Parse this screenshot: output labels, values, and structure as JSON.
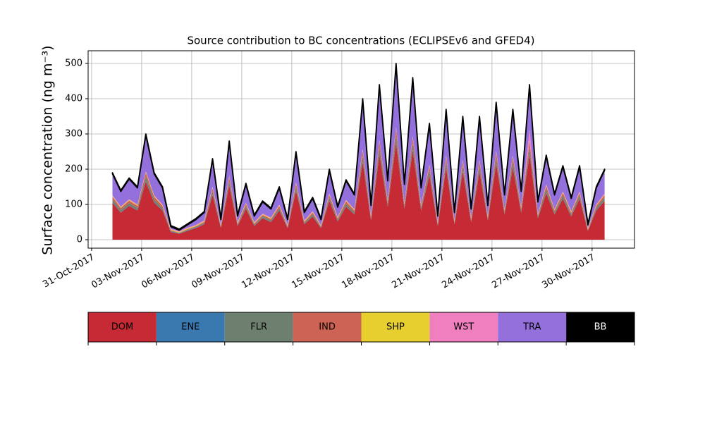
{
  "chart_data": {
    "type": "stacked-area",
    "title": "Source contribution to BC concentrations (ECLIPSEv6 and GFED4)",
    "y_label": "Surface concentration (ng m⁻³)",
    "x": [
      "2017-11-01T06:00",
      "2017-11-01T18:00",
      "2017-11-02T06:00",
      "2017-11-02T18:00",
      "2017-11-03T06:00",
      "2017-11-03T18:00",
      "2017-11-04T06:00",
      "2017-11-04T18:00",
      "2017-11-05T06:00",
      "2017-11-05T18:00",
      "2017-11-06T06:00",
      "2017-11-06T18:00",
      "2017-11-07T06:00",
      "2017-11-07T18:00",
      "2017-11-08T06:00",
      "2017-11-08T18:00",
      "2017-11-09T06:00",
      "2017-11-09T18:00",
      "2017-11-10T06:00",
      "2017-11-10T18:00",
      "2017-11-11T06:00",
      "2017-11-11T18:00",
      "2017-11-12T06:00",
      "2017-11-12T18:00",
      "2017-11-13T06:00",
      "2017-11-13T18:00",
      "2017-11-14T06:00",
      "2017-11-14T18:00",
      "2017-11-15T06:00",
      "2017-11-15T18:00",
      "2017-11-16T06:00",
      "2017-11-16T18:00",
      "2017-11-17T06:00",
      "2017-11-17T18:00",
      "2017-11-18T06:00",
      "2017-11-18T18:00",
      "2017-11-19T06:00",
      "2017-11-19T18:00",
      "2017-11-20T06:00",
      "2017-11-20T18:00",
      "2017-11-21T06:00",
      "2017-11-21T18:00",
      "2017-11-22T06:00",
      "2017-11-22T18:00",
      "2017-11-23T06:00",
      "2017-11-23T18:00",
      "2017-11-24T06:00",
      "2017-11-24T18:00",
      "2017-11-25T06:00",
      "2017-11-25T18:00",
      "2017-11-26T06:00",
      "2017-11-26T18:00",
      "2017-11-27T06:00",
      "2017-11-27T18:00",
      "2017-11-28T06:00",
      "2017-11-28T18:00",
      "2017-11-29T06:00",
      "2017-11-29T18:00",
      "2017-11-30T06:00",
      "2017-11-30T18:00"
    ],
    "series": [
      {
        "name": "DOM",
        "color": "#c52a35",
        "values": [
          105,
          77,
          96,
          83,
          165,
          105,
          83,
          22,
          17,
          25,
          33,
          44,
          127,
          33,
          154,
          39,
          88,
          39,
          61,
          50,
          83,
          33,
          138,
          44,
          66,
          33,
          110,
          52,
          94,
          72,
          220,
          55,
          242,
          94,
          275,
          88,
          253,
          83,
          182,
          39,
          204,
          44,
          193,
          50,
          193,
          55,
          215,
          72,
          204,
          77,
          242,
          61,
          132,
          72,
          116,
          66,
          116,
          25,
          83,
          110
        ]
      },
      {
        "name": "ENE",
        "color": "#3a78b0",
        "values": [
          1,
          1,
          1,
          1,
          1,
          1,
          1,
          1,
          1,
          1,
          1,
          1,
          1,
          1,
          1,
          1,
          1,
          1,
          1,
          1,
          1,
          1,
          1,
          1,
          1,
          1,
          1,
          1,
          1,
          1,
          1,
          1,
          1,
          1,
          1,
          1,
          1,
          1,
          1,
          1,
          1,
          1,
          1,
          1,
          1,
          1,
          1,
          1,
          1,
          1,
          1,
          1,
          1,
          1,
          1,
          1,
          1,
          1,
          1,
          1
        ]
      },
      {
        "name": "FLR",
        "color": "#6d8070",
        "values": [
          8,
          6,
          7,
          6,
          12,
          8,
          6,
          2,
          1,
          2,
          2,
          3,
          9,
          2,
          11,
          3,
          6,
          3,
          4,
          4,
          6,
          2,
          10,
          3,
          5,
          2,
          8,
          4,
          7,
          5,
          16,
          4,
          18,
          7,
          20,
          6,
          18,
          6,
          13,
          3,
          15,
          3,
          14,
          4,
          14,
          4,
          16,
          5,
          15,
          6,
          18,
          4,
          10,
          5,
          8,
          5,
          8,
          2,
          6,
          8
        ]
      },
      {
        "name": "IND",
        "color": "#cc6355",
        "values": [
          8,
          6,
          7,
          6,
          12,
          8,
          6,
          2,
          1,
          2,
          2,
          3,
          9,
          2,
          11,
          3,
          6,
          3,
          4,
          4,
          6,
          2,
          10,
          3,
          5,
          2,
          8,
          4,
          7,
          5,
          16,
          4,
          18,
          7,
          20,
          6,
          18,
          6,
          13,
          3,
          15,
          3,
          14,
          4,
          14,
          4,
          16,
          5,
          15,
          6,
          18,
          4,
          10,
          5,
          8,
          5,
          8,
          2,
          6,
          8
        ]
      },
      {
        "name": "SHP",
        "color": "#e6cf2e",
        "values": [
          2,
          2,
          2,
          2,
          2,
          2,
          2,
          2,
          2,
          2,
          2,
          2,
          2,
          2,
          2,
          2,
          2,
          2,
          2,
          2,
          2,
          2,
          2,
          2,
          2,
          2,
          2,
          2,
          2,
          2,
          2,
          2,
          2,
          2,
          2,
          2,
          2,
          2,
          2,
          2,
          2,
          2,
          2,
          2,
          2,
          2,
          2,
          2,
          2,
          2,
          2,
          2,
          2,
          2,
          2,
          2,
          2,
          2,
          2,
          2
        ]
      },
      {
        "name": "WST",
        "color": "#f07fbf",
        "values": [
          2,
          2,
          2,
          2,
          2,
          2,
          2,
          2,
          2,
          2,
          2,
          2,
          2,
          2,
          2,
          2,
          2,
          2,
          2,
          2,
          2,
          2,
          2,
          2,
          2,
          2,
          2,
          2,
          2,
          2,
          2,
          2,
          2,
          2,
          2,
          2,
          2,
          2,
          2,
          2,
          2,
          2,
          2,
          2,
          2,
          2,
          2,
          2,
          2,
          2,
          30,
          2,
          2,
          2,
          2,
          2,
          2,
          2,
          2,
          2
        ]
      },
      {
        "name": "TRA",
        "color": "#9370db",
        "values": [
          61,
          43,
          57,
          47,
          103,
          61,
          47,
          6,
          3,
          8,
          15,
          22,
          77,
          15,
          96,
          17,
          52,
          17,
          33,
          24,
          47,
          15,
          84,
          22,
          36,
          15,
          66,
          27,
          54,
          40,
          140,
          29,
          154,
          54,
          177,
          52,
          163,
          47,
          114,
          17,
          128,
          22,
          121,
          24,
          121,
          29,
          135,
          40,
          128,
          43,
          126,
          33,
          80,
          40,
          70,
          36,
          70,
          8,
          47,
          66
        ]
      },
      {
        "name": "BB",
        "color": "#000000",
        "values": [
          3,
          3,
          3,
          3,
          3,
          3,
          3,
          3,
          3,
          3,
          3,
          3,
          3,
          3,
          3,
          3,
          3,
          3,
          3,
          3,
          3,
          3,
          3,
          3,
          3,
          3,
          3,
          3,
          3,
          3,
          3,
          3,
          3,
          3,
          3,
          3,
          3,
          3,
          3,
          3,
          3,
          3,
          3,
          3,
          3,
          3,
          3,
          3,
          3,
          3,
          3,
          3,
          3,
          3,
          3,
          3,
          3,
          3,
          3,
          3
        ]
      }
    ],
    "xlim": [
      "2017-10-30T19:00",
      "2017-12-02T13:00"
    ],
    "xticks": [
      {
        "value": "2017-10-31T00:00",
        "label": "31-Oct-2017"
      },
      {
        "value": "2017-11-03T00:00",
        "label": "03-Nov-2017"
      },
      {
        "value": "2017-11-06T00:00",
        "label": "06-Nov-2017"
      },
      {
        "value": "2017-11-09T00:00",
        "label": "09-Nov-2017"
      },
      {
        "value": "2017-11-12T00:00",
        "label": "12-Nov-2017"
      },
      {
        "value": "2017-11-15T00:00",
        "label": "15-Nov-2017"
      },
      {
        "value": "2017-11-18T00:00",
        "label": "18-Nov-2017"
      },
      {
        "value": "2017-11-21T00:00",
        "label": "21-Nov-2017"
      },
      {
        "value": "2017-11-24T00:00",
        "label": "24-Nov-2017"
      },
      {
        "value": "2017-11-27T00:00",
        "label": "27-Nov-2017"
      },
      {
        "value": "2017-11-30T00:00",
        "label": "30-Nov-2017"
      }
    ],
    "ylim": [
      -24,
      536
    ],
    "yticks": [
      0,
      100,
      200,
      300,
      400,
      500
    ],
    "grid": true
  }
}
